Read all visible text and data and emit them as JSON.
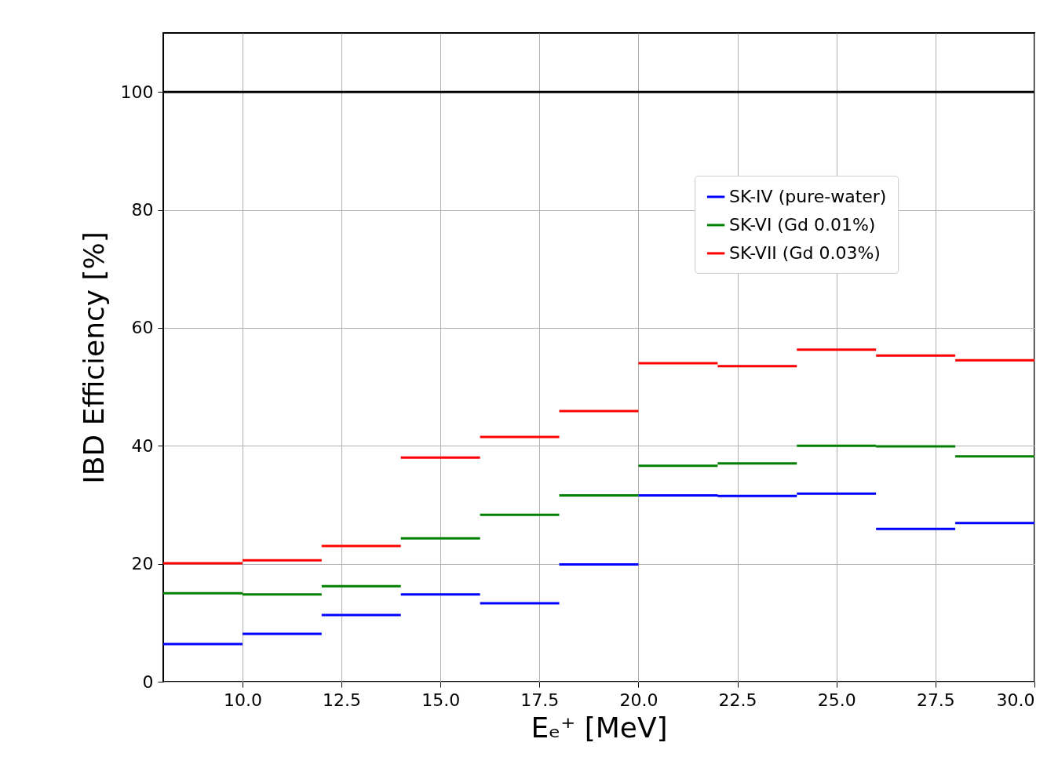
{
  "chart_data": {
    "type": "line",
    "xlabel": "Eₑ⁺ [MeV]",
    "ylabel": "IBD Efficiency [%]",
    "series": [
      {
        "name": "SK-IV (pure-water)",
        "color": "#0000ff",
        "x": [
          8,
          10,
          10,
          12,
          12,
          14,
          14,
          16,
          16,
          18,
          18,
          20,
          20,
          22,
          22,
          24,
          24,
          26,
          26,
          28,
          28,
          30
        ],
        "values": [
          6.4,
          6.4,
          8.1,
          8.1,
          11.3,
          11.3,
          14.8,
          14.8,
          13.3,
          13.3,
          19.9,
          19.9,
          31.6,
          31.6,
          31.5,
          31.5,
          31.9,
          31.9,
          25.9,
          25.9,
          26.9,
          26.9
        ]
      },
      {
        "name": "SK-VI (Gd 0.01%)",
        "color": "#008000",
        "x": [
          8,
          10,
          10,
          12,
          12,
          14,
          14,
          16,
          16,
          18,
          18,
          20,
          20,
          22,
          22,
          24,
          24,
          26,
          26,
          28,
          28,
          30
        ],
        "values": [
          15.0,
          15.0,
          14.8,
          14.8,
          16.2,
          16.2,
          24.3,
          24.3,
          28.3,
          28.3,
          31.6,
          31.6,
          36.6,
          36.6,
          37.0,
          37.0,
          40.0,
          40.0,
          39.9,
          39.9,
          38.2,
          38.2
        ]
      },
      {
        "name": "SK-VII (Gd 0.03%)",
        "color": "#ff0000",
        "x": [
          8,
          10,
          10,
          12,
          12,
          14,
          14,
          16,
          16,
          18,
          18,
          20,
          20,
          22,
          22,
          24,
          24,
          26,
          26,
          28,
          28,
          30
        ],
        "values": [
          20.1,
          20.1,
          20.6,
          20.6,
          23.0,
          23.0,
          38.0,
          38.0,
          41.5,
          41.5,
          45.9,
          45.9,
          54.0,
          54.0,
          53.5,
          53.5,
          56.3,
          56.3,
          55.3,
          55.3,
          54.5,
          54.5
        ]
      }
    ],
    "xlim": [
      8,
      30
    ],
    "xticks": [
      {
        "value": 10,
        "label": "10.0"
      },
      12.5,
      {
        "value": 15,
        "label": "15.0"
      },
      17.5,
      {
        "value": 20,
        "label": "20.0"
      },
      22.5,
      {
        "value": 25,
        "label": "25.0"
      },
      27.5,
      {
        "value": 30,
        "label": "30.0"
      }
    ],
    "ylim": [
      0,
      110
    ],
    "yticks": [
      0,
      20,
      40,
      60,
      80,
      100
    ],
    "ref_lines": [
      {
        "axis": "y",
        "value": 100,
        "color": "#000000"
      }
    ],
    "grid": true,
    "legend": "top right"
  }
}
